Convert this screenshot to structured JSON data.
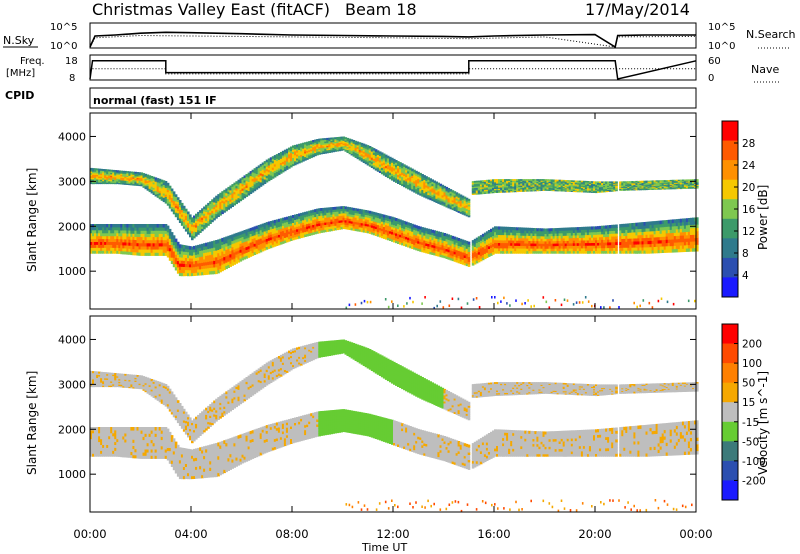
{
  "header": {
    "title": "Christmas Valley East (fitACF)",
    "beam": "Beam 18",
    "date": "17/May/2014"
  },
  "top_panels": {
    "nsky_label": "N.Sky",
    "nsearch_label": "N.Search",
    "noise_ticks": [
      "10^5",
      "10^0"
    ],
    "freq_label_1": "Freq.",
    "freq_label_2": "[MHz]",
    "freq_ticks": [
      "18",
      "8"
    ],
    "nave_label": "Nave",
    "nave_ticks": [
      "60",
      "0"
    ],
    "cpid_label": "CPID",
    "cpid_value": "normal (fast) 151 IF"
  },
  "colors": {
    "power": [
      "#1a1aff",
      "#2b4fb0",
      "#2f7a8c",
      "#3c9a6a",
      "#7ec850",
      "#f5c800",
      "#ff9000",
      "#ff5a00",
      "#ff0000"
    ],
    "velocity": [
      "#1a1aff",
      "#2b4fb0",
      "#3c7a7a",
      "#66cc33",
      "#bebebe",
      "#f5a800",
      "#ff8000",
      "#ff4a00",
      "#ff0000"
    ]
  },
  "chart_data": [
    {
      "type": "line",
      "panel": "noise",
      "ylabel_left": "N.Sky",
      "ylabel_right": "N.Search",
      "x_unit": "hours UT",
      "xlim": [
        0,
        24
      ],
      "ylim_log10": [
        0,
        5
      ],
      "series": [
        {
          "style": "solid",
          "x": [
            0,
            0.2,
            1,
            2,
            3,
            4,
            6,
            8,
            10,
            12,
            14,
            15,
            16,
            18,
            20,
            20.8,
            20.9,
            22,
            24
          ],
          "y": [
            0,
            2.4,
            2.6,
            3.0,
            3.2,
            3.1,
            2.9,
            2.6,
            2.5,
            2.4,
            2.3,
            2.2,
            2.4,
            2.6,
            2.7,
            0,
            2.5,
            2.6,
            2.6
          ]
        },
        {
          "style": "dotted",
          "x": [
            0,
            0.2,
            2,
            4,
            8,
            12,
            15,
            18,
            20.8,
            20.9,
            24
          ],
          "y": [
            0,
            2.0,
            2.5,
            2.4,
            2.2,
            2.0,
            1.8,
            2.2,
            0,
            2.2,
            2.3
          ]
        }
      ]
    },
    {
      "type": "line",
      "panel": "frequency",
      "ylabel_left": "Freq. [MHz]",
      "ylabel_right": "Nave",
      "xlim": [
        0,
        24
      ],
      "ylim": [
        8,
        18
      ],
      "series": [
        {
          "style": "solid",
          "x": [
            0,
            0.1,
            3.0,
            3.0,
            15.0,
            15.0,
            20.8,
            20.9,
            24
          ],
          "y": [
            8,
            15.9,
            15.9,
            10.8,
            10.8,
            15.9,
            15.9,
            8,
            15.9
          ]
        },
        {
          "style": "dotted",
          "x": [
            0.1,
            3.0,
            3.0,
            15.0,
            15.0,
            24
          ],
          "y": [
            12.5,
            12.5,
            10.2,
            10.2,
            12.5,
            12.5
          ]
        }
      ]
    },
    {
      "type": "heatmap",
      "panel": "power",
      "ylabel": "Slant Range [km]",
      "yticks": [
        1000,
        2000,
        3000,
        4000
      ],
      "ylim": [
        180,
        4500
      ],
      "xlim": [
        0,
        24
      ],
      "colorbar_label": "Power [dB]",
      "colorbar_ticks": [
        "28",
        "24",
        "20",
        "16",
        "12",
        "8",
        "4"
      ],
      "bands": [
        {
          "name": "main",
          "x": [
            0,
            1,
            2,
            3,
            3.5,
            4,
            5,
            6,
            7,
            8,
            9,
            10,
            11,
            12,
            13,
            14,
            15,
            16,
            18,
            20,
            21,
            22,
            24
          ],
          "lower": [
            1400,
            1400,
            1350,
            1350,
            900,
            900,
            950,
            1250,
            1500,
            1700,
            1850,
            1950,
            1850,
            1650,
            1450,
            1300,
            1100,
            1400,
            1400,
            1400,
            1400,
            1400,
            1450
          ],
          "upper": [
            2050,
            2050,
            2050,
            2050,
            1600,
            1550,
            1700,
            1900,
            2100,
            2250,
            2400,
            2450,
            2350,
            2200,
            2000,
            1850,
            1650,
            2000,
            1950,
            2000,
            2050,
            2100,
            2200
          ]
        },
        {
          "name": "upper",
          "x": [
            0,
            1,
            2,
            3,
            4,
            5,
            6,
            7,
            8,
            9,
            10,
            11,
            12,
            13,
            14,
            15
          ],
          "lower": [
            2950,
            2950,
            2900,
            2500,
            1700,
            2200,
            2600,
            3000,
            3350,
            3600,
            3700,
            3350,
            3000,
            2700,
            2450,
            2200
          ],
          "upper": [
            3300,
            3250,
            3200,
            3000,
            2200,
            2700,
            3100,
            3500,
            3800,
            3950,
            4000,
            3800,
            3500,
            3200,
            2900,
            2600
          ]
        },
        {
          "name": "far",
          "x": [
            15,
            16,
            18,
            20,
            21,
            24
          ],
          "lower": [
            2700,
            2750,
            2800,
            2750,
            2800,
            2850
          ],
          "upper": [
            3000,
            3050,
            3050,
            3000,
            3000,
            3050
          ]
        }
      ],
      "gaps_x": [
        [
          15.0,
          15.1
        ],
        [
          20.8,
          20.9
        ]
      ]
    },
    {
      "type": "heatmap",
      "panel": "velocity",
      "ylabel": "Slant Range [km]",
      "yticks": [
        1000,
        2000,
        3000,
        4000
      ],
      "ylim": [
        180,
        4500
      ],
      "xlim": [
        0,
        24
      ],
      "colorbar_label": "Velocity [m s^-1]",
      "colorbar_ticks": [
        "200",
        "100",
        "50",
        "15",
        "-15",
        "-50",
        "-100",
        "-200"
      ]
    }
  ],
  "xaxis": {
    "ticks": [
      "00:00",
      "04:00",
      "08:00",
      "12:00",
      "16:00",
      "20:00",
      "00:00"
    ],
    "label": "Time UT"
  }
}
